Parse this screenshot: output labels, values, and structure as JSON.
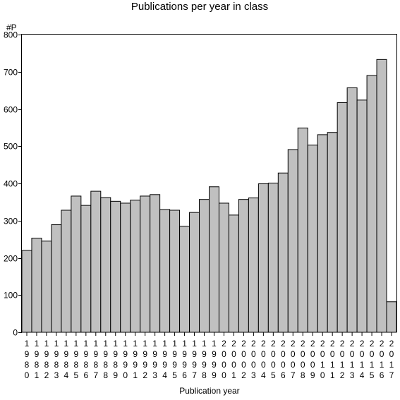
{
  "chart_data": {
    "type": "bar",
    "title": "Publications per year in class",
    "ylabel": "#P",
    "xlabel": "Publication year",
    "ylim": [
      0,
      800
    ],
    "yticks": [
      0,
      100,
      200,
      300,
      400,
      500,
      600,
      700,
      800
    ],
    "grid": false,
    "legend": "none",
    "bar_color": "#c0c0c0",
    "categories": [
      "1980",
      "1981",
      "1982",
      "1983",
      "1984",
      "1985",
      "1986",
      "1987",
      "1988",
      "1989",
      "1990",
      "1991",
      "1992",
      "1993",
      "1994",
      "1995",
      "1996",
      "1997",
      "1998",
      "1999",
      "2000",
      "2001",
      "2002",
      "2003",
      "2004",
      "2005",
      "2006",
      "2007",
      "2008",
      "2009",
      "2010",
      "2011",
      "2012",
      "2013",
      "2014",
      "2015",
      "2016",
      "2017"
    ],
    "values": [
      220,
      253,
      245,
      289,
      328,
      366,
      341,
      379,
      362,
      352,
      347,
      355,
      366,
      370,
      330,
      328,
      285,
      322,
      357,
      391,
      347,
      315,
      357,
      361,
      399,
      401,
      428,
      491,
      549,
      503,
      531,
      537,
      617,
      657,
      624,
      690,
      733,
      82
    ]
  }
}
